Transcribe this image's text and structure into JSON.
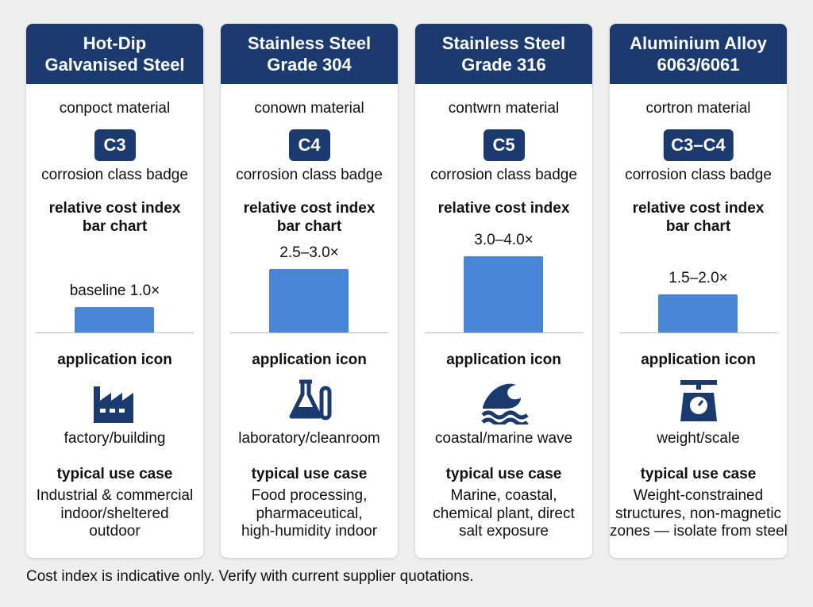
{
  "cards": [
    {
      "title": [
        "Hot-Dip",
        "Galvanised Steel"
      ],
      "material_note": "conpoct material",
      "badge": "C3",
      "badge_caption": "corrosion class badge",
      "chart_label": [
        "relative cost index",
        "bar chart"
      ],
      "cost_index": {
        "value": 1.0,
        "label": "baseline 1.0×"
      },
      "icon_heading": "application icon",
      "icon_caption": "factory/building",
      "use_heading": "typical use case",
      "use_case": [
        "Industrial & commercial",
        "indoor/sheltered",
        "outdoor"
      ]
    },
    {
      "title": [
        "Stainless Steel",
        "Grade 304"
      ],
      "material_note": "conown material",
      "badge": "C4",
      "badge_caption": "corrosion class badge",
      "chart_label": [
        "relative cost index",
        "bar chart"
      ],
      "cost_index": {
        "value": 2.5,
        "label": "2.5–3.0×"
      },
      "icon_heading": "application icon",
      "icon_caption": "laboratory/cleanroom",
      "use_heading": "typical use case",
      "use_case": [
        "Food processing,",
        "pharmaceutical,",
        "high-humidity indoor"
      ]
    },
    {
      "title": [
        "Stainless Steel",
        "Grade 316"
      ],
      "material_note": "contwrn material",
      "badge": "C5",
      "badge_caption": "corrosion class badge",
      "chart_label": [
        "relative cost index"
      ],
      "cost_index": {
        "value": 3.0,
        "label": "3.0–4.0×"
      },
      "icon_heading": "application icon",
      "icon_caption": "coastal/marine wave",
      "use_heading": "typical use case",
      "use_case": [
        "Marine, coastal,",
        "chemical plant, direct",
        "salt exposure"
      ]
    },
    {
      "title": [
        "Aluminium Alloy",
        "6063/6061"
      ],
      "material_note": "cortron material",
      "badge": "C3–C4",
      "badge_caption": "corrosion class badge",
      "chart_label": [
        "relative cost index",
        "bar chart"
      ],
      "cost_index": {
        "value": 1.5,
        "label": "1.5–2.0×"
      },
      "icon_heading": "application icon",
      "icon_caption": "weight/scale",
      "use_heading": "typical use case",
      "use_case": [
        "Weight-constrained",
        "structures, non-magnetic",
        "zones — isolate from steel"
      ]
    }
  ],
  "footer": "Cost index is indicative only. Verify with current supplier quotations."
}
